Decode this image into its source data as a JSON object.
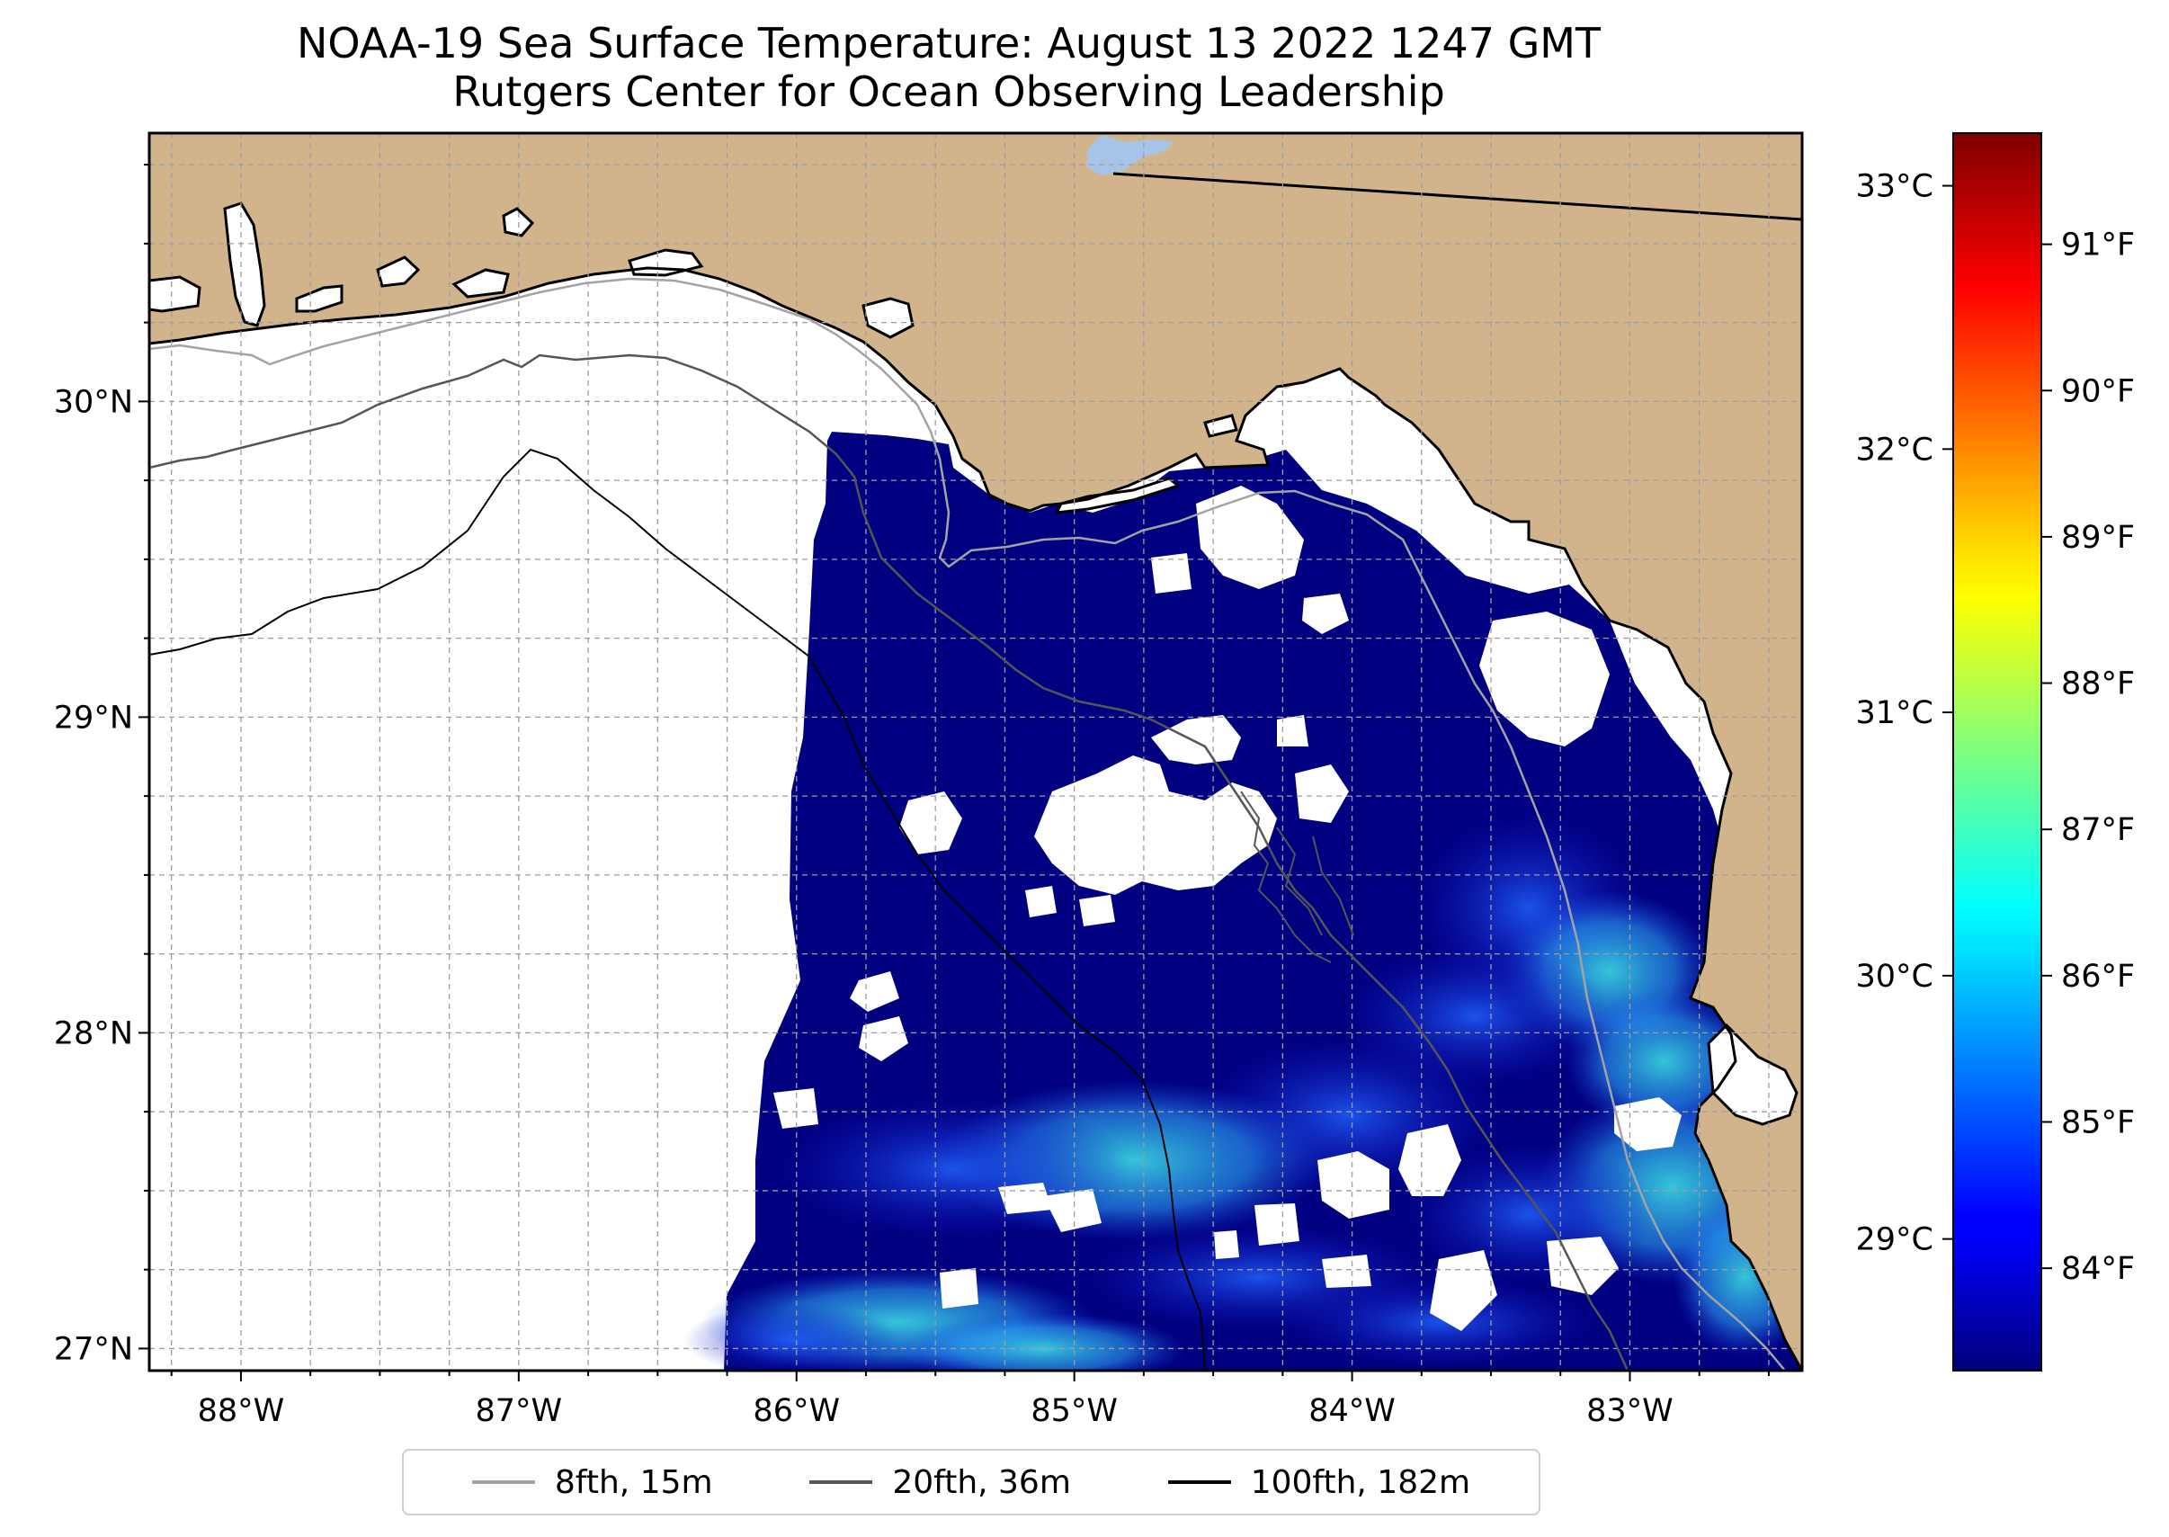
{
  "title": {
    "line1": "NOAA-19 Sea Surface Temperature: August 13 2022 1247 GMT",
    "line2": "Rutgers Center for Ocean Observing Leadership"
  },
  "map": {
    "lon_range": [
      -88.33,
      -82.38
    ],
    "lat_range": [
      26.93,
      30.85
    ],
    "lon_ticks": [
      {
        "value": -88,
        "label": "88°W"
      },
      {
        "value": -87,
        "label": "87°W"
      },
      {
        "value": -86,
        "label": "86°W"
      },
      {
        "value": -85,
        "label": "85°W"
      },
      {
        "value": -84,
        "label": "84°W"
      },
      {
        "value": -83,
        "label": "83°W"
      }
    ],
    "lat_ticks": [
      {
        "value": 27,
        "label": "27°N"
      },
      {
        "value": 28,
        "label": "28°N"
      },
      {
        "value": 29,
        "label": "29°N"
      },
      {
        "value": 30,
        "label": "30°N"
      }
    ],
    "grid_step_deg": 0.25,
    "grid": true,
    "colors": {
      "land": "#d2b48c",
      "coast": "#000000",
      "grid": "#9e9e9e",
      "lake": "#a6c4e8",
      "sst_cold": "#000080",
      "sst_mid": "#1d52f0",
      "sst_warm": "#3ff0e8"
    }
  },
  "colorbar": {
    "colormap": "jet",
    "range_c": [
      28.5,
      33.2
    ],
    "celsius_ticks": [
      {
        "value": 29,
        "label": "29°C"
      },
      {
        "value": 30,
        "label": "30°C"
      },
      {
        "value": 31,
        "label": "31°C"
      },
      {
        "value": 32,
        "label": "32°C"
      },
      {
        "value": 33,
        "label": "33°C"
      }
    ],
    "fahrenheit_ticks": [
      {
        "value": 84,
        "label": "84°F"
      },
      {
        "value": 85,
        "label": "85°F"
      },
      {
        "value": 86,
        "label": "86°F"
      },
      {
        "value": 87,
        "label": "87°F"
      },
      {
        "value": 88,
        "label": "88°F"
      },
      {
        "value": 89,
        "label": "89°F"
      },
      {
        "value": 90,
        "label": "90°F"
      },
      {
        "value": 91,
        "label": "91°F"
      }
    ]
  },
  "legend": {
    "placement": "bottom-center",
    "items": [
      {
        "label": "8fth, 15m",
        "color": "#a3a3a3"
      },
      {
        "label": "20fth, 36m",
        "color": "#555555"
      },
      {
        "label": "100fth, 182m",
        "color": "#000000"
      }
    ]
  }
}
